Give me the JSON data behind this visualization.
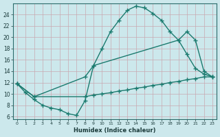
{
  "xlabel": "Humidex (Indice chaleur)",
  "bg_color": "#cce8ec",
  "grid_color": "#b0d8dc",
  "line_color": "#1a7a6e",
  "xlim": [
    -0.5,
    23.5
  ],
  "ylim": [
    5.5,
    26.0
  ],
  "xticks": [
    0,
    1,
    2,
    3,
    4,
    5,
    6,
    7,
    8,
    9,
    10,
    11,
    12,
    13,
    14,
    15,
    16,
    17,
    18,
    19,
    20,
    21,
    22,
    23
  ],
  "yticks": [
    6,
    8,
    10,
    12,
    14,
    16,
    18,
    20,
    22,
    24
  ],
  "curve1_x": [
    0,
    1,
    2,
    3,
    4,
    5,
    6,
    7,
    8,
    9,
    10,
    11,
    12,
    13,
    14,
    15,
    16,
    17,
    18,
    19,
    20,
    21,
    22,
    23
  ],
  "curve1_y": [
    11.8,
    10.2,
    9.0,
    8.0,
    7.5,
    7.2,
    6.5,
    6.2,
    8.8,
    15.0,
    18.0,
    21.0,
    23.0,
    24.8,
    25.5,
    25.2,
    24.2,
    23.0,
    21.0,
    19.5,
    17.0,
    14.5,
    13.5,
    13.0
  ],
  "curve2_x": [
    0,
    2,
    8,
    9,
    19,
    20,
    21,
    22,
    23
  ],
  "curve2_y": [
    11.8,
    9.5,
    13.0,
    15.0,
    19.5,
    21.0,
    19.5,
    14.0,
    13.0
  ],
  "curve3_x": [
    0,
    2,
    8,
    9,
    10,
    11,
    12,
    13,
    14,
    15,
    16,
    17,
    18,
    19,
    20,
    21,
    22,
    23
  ],
  "curve3_y": [
    11.8,
    9.5,
    9.5,
    9.8,
    10.0,
    10.2,
    10.5,
    10.7,
    11.0,
    11.2,
    11.5,
    11.7,
    12.0,
    12.2,
    12.5,
    12.7,
    13.0,
    13.0
  ]
}
